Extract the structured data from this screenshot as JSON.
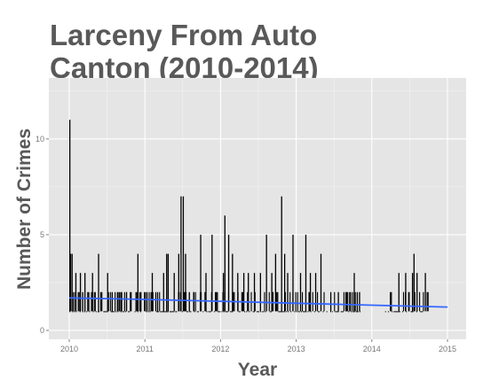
{
  "chart_data": {
    "type": "bar",
    "title_line1": "Larceny From Auto",
    "title_line2": "Canton (2010-2014)",
    "xlabel": "Year",
    "ylabel": "Number of Crimes",
    "xlim": [
      2010,
      2015
    ],
    "ylim": [
      0,
      13
    ],
    "xticks": [
      "2010",
      "2011",
      "2012",
      "2013",
      "2014",
      "2015"
    ],
    "yticks": [
      "0",
      "5",
      "10"
    ],
    "grid": true,
    "series": [
      {
        "x": [
          2010.0,
          2010.01,
          2010.03,
          2010.05,
          2010.08,
          2010.14,
          2010.17,
          2010.2,
          2010.25,
          2010.3,
          2010.38,
          2010.41,
          2010.5,
          2010.56,
          2010.63,
          2010.68,
          2010.75,
          2010.8,
          2010.9,
          2010.94,
          2011.02,
          2011.09,
          2011.16,
          2011.24,
          2011.28,
          2011.3,
          2011.38,
          2011.44,
          2011.47,
          2011.5,
          2011.53,
          2011.58,
          2011.64,
          2011.73,
          2011.8,
          2011.88,
          2011.95,
          2012.03,
          2012.05,
          2012.1,
          2012.15,
          2012.22,
          2012.3,
          2012.36,
          2012.44,
          2012.52,
          2012.6,
          2012.67,
          2012.72,
          2012.8,
          2012.84,
          2012.88,
          2012.95,
          2013.05,
          2013.12,
          2013.18,
          2013.25,
          2013.32,
          2013.45,
          2013.55,
          2013.65,
          2013.76,
          2013.8,
          2013.83,
          2014.25,
          2014.35,
          2014.44,
          2014.48,
          2014.53,
          2014.55,
          2014.59,
          2014.7
        ],
        "values": [
          11,
          4,
          4,
          2,
          3,
          3,
          2,
          3,
          2,
          3,
          4,
          2,
          3,
          2,
          2,
          2,
          2,
          2,
          4,
          2,
          2,
          3,
          2,
          3,
          4,
          4,
          3,
          4,
          7,
          7,
          4,
          2,
          2,
          5,
          3,
          5,
          2,
          3,
          6,
          5,
          4,
          3,
          3,
          3,
          3,
          3,
          5,
          3,
          4,
          7,
          4,
          3,
          5,
          3,
          5,
          3,
          3,
          4,
          2,
          2,
          2,
          3,
          2,
          2,
          2,
          3,
          3,
          2,
          3,
          4,
          3,
          3
        ]
      }
    ],
    "trend": {
      "x": [
        2010,
        2011,
        2012,
        2013,
        2014,
        2015
      ],
      "y": [
        1.7,
        1.62,
        1.52,
        1.42,
        1.32,
        1.22
      ],
      "color": "#3366ff"
    },
    "colors": {
      "panel": "#e5e5e5",
      "grid": "#ffffff",
      "bars": "#000000"
    }
  }
}
